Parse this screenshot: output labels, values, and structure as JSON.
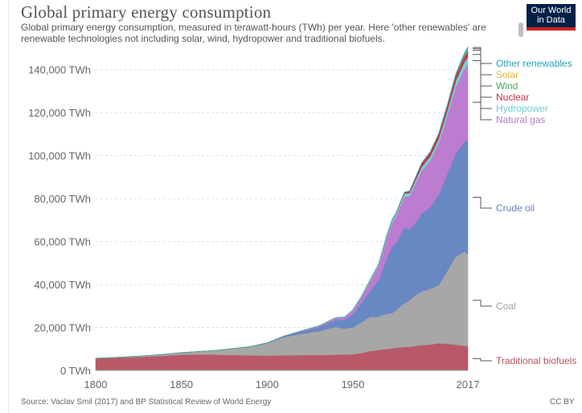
{
  "header": {
    "title": "Global primary energy consumption",
    "subtitle": "Global primary energy consumption, measured in terawatt-hours (TWh) per year. Here 'other renewables' are renewable technologies not including solar, wind, hydropower and traditional biofuels.",
    "logo_line1": "Our World",
    "logo_line2": "in Data"
  },
  "footer": {
    "source": "Source: Vaclav Smil (2017) and BP Statistical Review of World Energy",
    "license": "CC BY"
  },
  "chart_data": {
    "type": "area",
    "stacked": true,
    "title": "Global primary energy consumption",
    "xlabel": "",
    "ylabel": "",
    "xlim": [
      1800,
      2017
    ],
    "ylim": [
      0,
      150000
    ],
    "y_unit": "TWh",
    "grid": true,
    "legend_position": "right",
    "x_ticks": [
      "1800",
      "1850",
      "1900",
      "1950",
      "2017"
    ],
    "y_ticks": [
      "0 TWh",
      "20,000 TWh",
      "40,000 TWh",
      "60,000 TWh",
      "80,000 TWh",
      "100,000 TWh",
      "120,000 TWh",
      "140,000 TWh"
    ],
    "x": [
      1800,
      1810,
      1820,
      1830,
      1840,
      1850,
      1860,
      1870,
      1880,
      1890,
      1900,
      1910,
      1920,
      1930,
      1940,
      1945,
      1950,
      1955,
      1960,
      1965,
      1970,
      1973,
      1975,
      1980,
      1983,
      1985,
      1990,
      1995,
      2000,
      2005,
      2010,
      2015,
      2017
    ],
    "series": [
      {
        "name": "Traditional biofuels",
        "color": "#b5505f",
        "values": [
          5600,
          5800,
          6100,
          6400,
          6800,
          7300,
          7400,
          7300,
          7200,
          7000,
          6900,
          7000,
          7100,
          7200,
          7300,
          7400,
          7500,
          8000,
          9000,
          9500,
          10000,
          10200,
          10500,
          10900,
          11000,
          11200,
          11800,
          12000,
          12600,
          12400,
          12000,
          11400,
          11100
        ]
      },
      {
        "name": "Coal",
        "color": "#a2a2a2",
        "values": [
          100,
          200,
          300,
          500,
          700,
          1000,
          1400,
          2000,
          3000,
          4000,
          5700,
          8500,
          10000,
          11000,
          13000,
          12000,
          12500,
          14500,
          16000,
          15500,
          16500,
          16500,
          17500,
          20500,
          21500,
          23000,
          25000,
          26000,
          27000,
          34000,
          41000,
          44000,
          43000
        ]
      },
      {
        "name": "Crude oil",
        "color": "#6082c1",
        "values": [
          0,
          0,
          0,
          0,
          0,
          0,
          0,
          10,
          20,
          50,
          180,
          400,
          1000,
          1800,
          3200,
          4200,
          6000,
          8800,
          12000,
          17000,
          26000,
          31000,
          31000,
          35000,
          33000,
          33000,
          36000,
          38000,
          42000,
          45000,
          48000,
          51000,
          53000
        ]
      },
      {
        "name": "Natural gas",
        "color": "#b876cf",
        "values": [
          0,
          0,
          0,
          0,
          0,
          0,
          0,
          0,
          5,
          30,
          60,
          140,
          250,
          600,
          900,
          1000,
          1900,
          2800,
          4500,
          6800,
          10000,
          11500,
          12500,
          14500,
          15500,
          17000,
          20000,
          21500,
          24000,
          27000,
          31000,
          34000,
          35500
        ]
      },
      {
        "name": "Hydropower",
        "color": "#6dcfd0",
        "values": [
          0,
          0,
          0,
          0,
          0,
          0,
          0,
          0,
          0,
          0,
          15,
          40,
          60,
          130,
          190,
          250,
          330,
          450,
          650,
          800,
          1100,
          1200,
          1300,
          1450,
          1550,
          1650,
          1800,
          2000,
          2150,
          2400,
          2800,
          3100,
          3200
        ]
      },
      {
        "name": "Nuclear",
        "color": "#c02c46",
        "values": [
          0,
          0,
          0,
          0,
          0,
          0,
          0,
          0,
          0,
          0,
          0,
          0,
          0,
          0,
          0,
          0,
          0,
          0,
          0,
          20,
          60,
          150,
          300,
          600,
          900,
          1200,
          1800,
          2100,
          2300,
          2500,
          2600,
          2500,
          2600
        ]
      },
      {
        "name": "Wind",
        "color": "#4daa5a",
        "values": [
          0,
          0,
          0,
          0,
          0,
          0,
          0,
          0,
          0,
          0,
          0,
          0,
          0,
          0,
          0,
          0,
          0,
          0,
          0,
          0,
          0,
          0,
          0,
          0,
          0,
          0,
          4,
          8,
          30,
          100,
          340,
          800,
          1100
        ]
      },
      {
        "name": "Solar",
        "color": "#e4b52b",
        "values": [
          0,
          0,
          0,
          0,
          0,
          0,
          0,
          0,
          0,
          0,
          0,
          0,
          0,
          0,
          0,
          0,
          0,
          0,
          0,
          0,
          0,
          0,
          0,
          0,
          0,
          0,
          0,
          0,
          1,
          4,
          30,
          250,
          450
        ]
      },
      {
        "name": "Other renewables",
        "color": "#28a2b4",
        "values": [
          0,
          0,
          0,
          0,
          0,
          0,
          0,
          0,
          0,
          0,
          0,
          0,
          0,
          0,
          0,
          0,
          0,
          0,
          0,
          0,
          30,
          40,
          60,
          100,
          130,
          150,
          210,
          260,
          300,
          390,
          540,
          740,
          800
        ]
      }
    ]
  }
}
